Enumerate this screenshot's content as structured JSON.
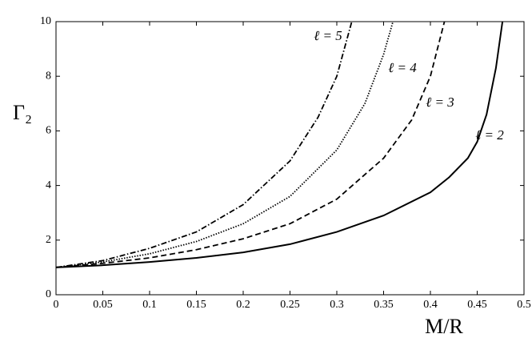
{
  "chart_data": {
    "type": "line",
    "x_label": "M/R",
    "y_label": "Γ₂",
    "xlim": [
      0,
      0.5
    ],
    "ylim": [
      0,
      10
    ],
    "xticks": [
      0,
      0.05,
      0.1,
      0.15,
      0.2,
      0.25,
      0.3,
      0.35,
      0.4,
      0.45,
      0.5
    ],
    "yticks": [
      0,
      2,
      4,
      6,
      8,
      10
    ],
    "grid": false,
    "series": [
      {
        "name": "ℓ = 2",
        "color": "#000000",
        "style": "solid",
        "x": [
          0,
          0.05,
          0.1,
          0.15,
          0.2,
          0.25,
          0.3,
          0.35,
          0.4,
          0.42,
          0.44,
          0.45,
          0.46,
          0.47,
          0.477
        ],
        "values": [
          1,
          1.08,
          1.2,
          1.35,
          1.55,
          1.85,
          2.3,
          2.9,
          3.75,
          4.3,
          5.0,
          5.6,
          6.6,
          8.3,
          10
        ]
      },
      {
        "name": "ℓ = 3",
        "color": "#000000",
        "style": "dashed",
        "x": [
          0,
          0.05,
          0.1,
          0.15,
          0.2,
          0.25,
          0.3,
          0.35,
          0.38,
          0.4,
          0.415
        ],
        "values": [
          1,
          1.15,
          1.35,
          1.65,
          2.05,
          2.6,
          3.5,
          5.0,
          6.4,
          8.0,
          10
        ]
      },
      {
        "name": "ℓ = 4",
        "color": "#000000",
        "style": "dotted",
        "x": [
          0,
          0.05,
          0.1,
          0.15,
          0.2,
          0.25,
          0.3,
          0.33,
          0.35,
          0.36
        ],
        "values": [
          1,
          1.2,
          1.5,
          1.95,
          2.6,
          3.6,
          5.3,
          7.0,
          8.8,
          10
        ]
      },
      {
        "name": "ℓ = 5",
        "color": "#000000",
        "style": "dashdot",
        "x": [
          0,
          0.05,
          0.1,
          0.15,
          0.2,
          0.25,
          0.28,
          0.3,
          0.316
        ],
        "values": [
          1,
          1.25,
          1.7,
          2.3,
          3.3,
          4.9,
          6.5,
          8.0,
          10
        ]
      }
    ]
  }
}
